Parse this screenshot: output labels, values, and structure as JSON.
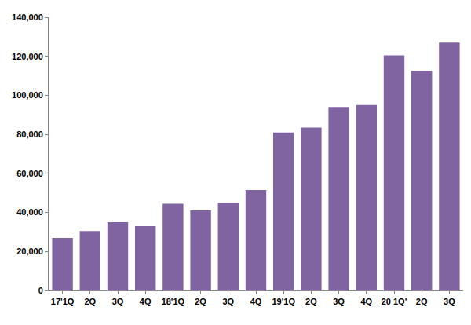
{
  "chart_data": {
    "type": "bar",
    "categories": [
      "17'1Q",
      "2Q",
      "3Q",
      "4Q",
      "18'1Q",
      "2Q",
      "3Q",
      "4Q",
      "19'1Q",
      "2Q",
      "3Q",
      "4Q",
      "20 1Q'",
      "2Q",
      "3Q"
    ],
    "values": [
      27000,
      30500,
      35000,
      33000,
      44500,
      41000,
      45000,
      51500,
      81000,
      83500,
      94000,
      95000,
      120500,
      112500,
      127000
    ],
    "color": "#8064a2",
    "ylim": [
      0,
      140000
    ],
    "yticks": [
      0,
      {
        "value": 20000,
        "label": "20,000"
      },
      {
        "value": 40000,
        "label": "40,000"
      },
      {
        "value": 60000,
        "label": "60,000"
      },
      {
        "value": 80000,
        "label": "80,000"
      },
      {
        "value": 100000,
        "label": "100,000"
      },
      {
        "value": 120000,
        "label": "120,000"
      },
      {
        "value": 140000,
        "label": "140,000"
      }
    ],
    "grid": false
  }
}
